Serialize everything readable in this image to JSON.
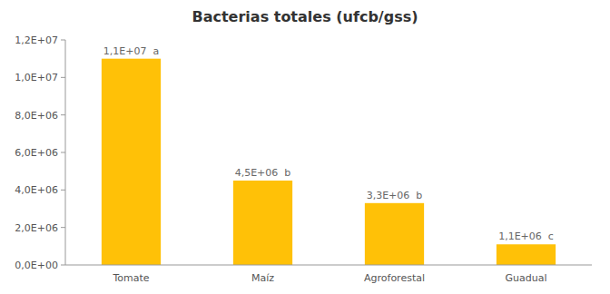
{
  "chart_data": {
    "type": "bar",
    "title": "Bacterias totales (ufcb/gss)",
    "categories": [
      "Tomate",
      "Maíz",
      "Agroforestal",
      "Guadual"
    ],
    "values": [
      11000000,
      4500000,
      3300000,
      1100000
    ],
    "value_labels": [
      "1,1E+07  a",
      "4,5E+06  b",
      "3,3E+06  b",
      "1,1E+06  c"
    ],
    "data_labels": true,
    "color": "#FFC107",
    "ylim": [
      0,
      12000000
    ],
    "yticks": [
      {
        "value": 0,
        "label": "0,0E+00"
      },
      {
        "value": 2000000,
        "label": "2,0E+06"
      },
      {
        "value": 4000000,
        "label": "4,0E+06"
      },
      {
        "value": 6000000,
        "label": "6,0E+06"
      },
      {
        "value": 8000000,
        "label": "8,0E+06"
      },
      {
        "value": 10000000,
        "label": "1,0E+07"
      },
      {
        "value": 12000000,
        "label": "1,2E+07"
      }
    ],
    "grid": false
  }
}
